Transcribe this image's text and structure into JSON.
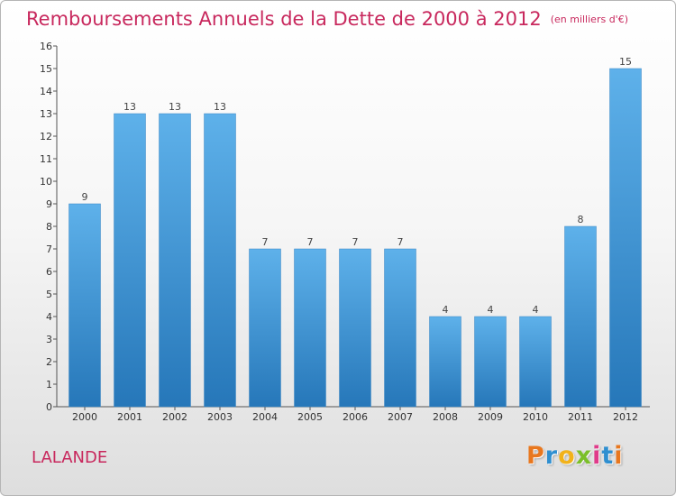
{
  "header": {
    "title": "Remboursements Annuels de la Dette de 2000 à 2012",
    "unit": "(en milliers d'€)"
  },
  "footer": {
    "commune": "LALANDE",
    "logo_letters": [
      "P",
      "r",
      "o",
      "x",
      "i",
      "t",
      "i"
    ],
    "logo_colors": [
      "#e8771e",
      "#2f8fd0",
      "#f1b21b",
      "#7bbf2a",
      "#e03b8a",
      "#2f8fd0",
      "#e8771e"
    ]
  },
  "colors": {
    "title": "#c8285d",
    "bar_top": "#5eb1ea",
    "bar_bottom": "#2677b9",
    "axis": "#555555",
    "grid": "#d8d8d8"
  },
  "chart_data": {
    "type": "bar",
    "title": "Remboursements Annuels de la Dette de 2000 à 2012",
    "subtitle": "(en milliers d'€)",
    "categories": [
      "2000",
      "2001",
      "2002",
      "2003",
      "2004",
      "2005",
      "2006",
      "2007",
      "2008",
      "2009",
      "2010",
      "2011",
      "2012"
    ],
    "values": [
      9,
      13,
      13,
      13,
      7,
      7,
      7,
      7,
      4,
      4,
      4,
      8,
      15
    ],
    "ylim": [
      0,
      16
    ],
    "yticks": [
      0,
      1,
      2,
      3,
      4,
      5,
      6,
      7,
      8,
      9,
      10,
      11,
      12,
      13,
      14,
      15,
      16
    ],
    "data_labels": [
      "9",
      "13",
      "13",
      "13",
      "7",
      "7",
      "7",
      "7",
      "4",
      "4",
      "4",
      "8",
      "15"
    ],
    "grid": false,
    "legend": "none"
  }
}
